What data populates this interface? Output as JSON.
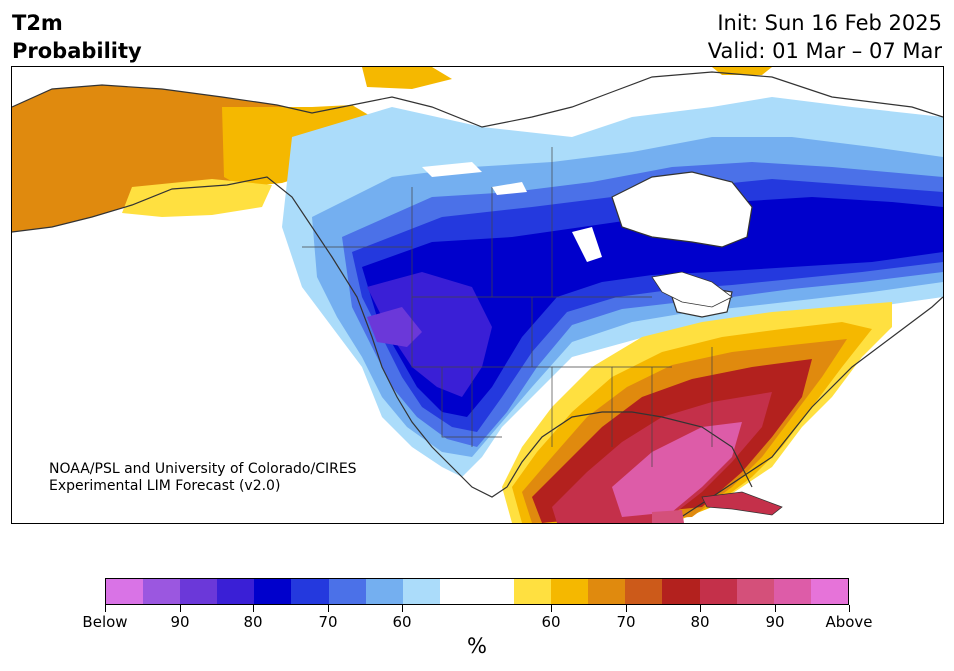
{
  "header": {
    "left_line1": "T2m",
    "left_line2": "Probability",
    "init": "Init: Sun 16 Feb 2025",
    "valid": "Valid: 01 Mar – 07 Mar"
  },
  "credit": {
    "line1": "NOAA/PSL and University of Colorado/CIRES",
    "line2": "Experimental LIM Forecast (v2.0)"
  },
  "colorbar": {
    "colors": [
      "#d973e6",
      "#9b57e0",
      "#6b38d9",
      "#3a1fd6",
      "#0000cc",
      "#2439de",
      "#4b71e8",
      "#74aff0",
      "#abdcfa",
      "#ffffff",
      "#ffffff",
      "#ffe040",
      "#f5b800",
      "#e08a0e",
      "#cc5a1a",
      "#b3211e",
      "#c4304a",
      "#d4507a",
      "#dd5ca8",
      "#e673d9"
    ],
    "labels": [
      "Below",
      "90",
      "80",
      "70",
      "60",
      "60",
      "70",
      "80",
      "90",
      "Above"
    ],
    "unit": "%"
  }
}
